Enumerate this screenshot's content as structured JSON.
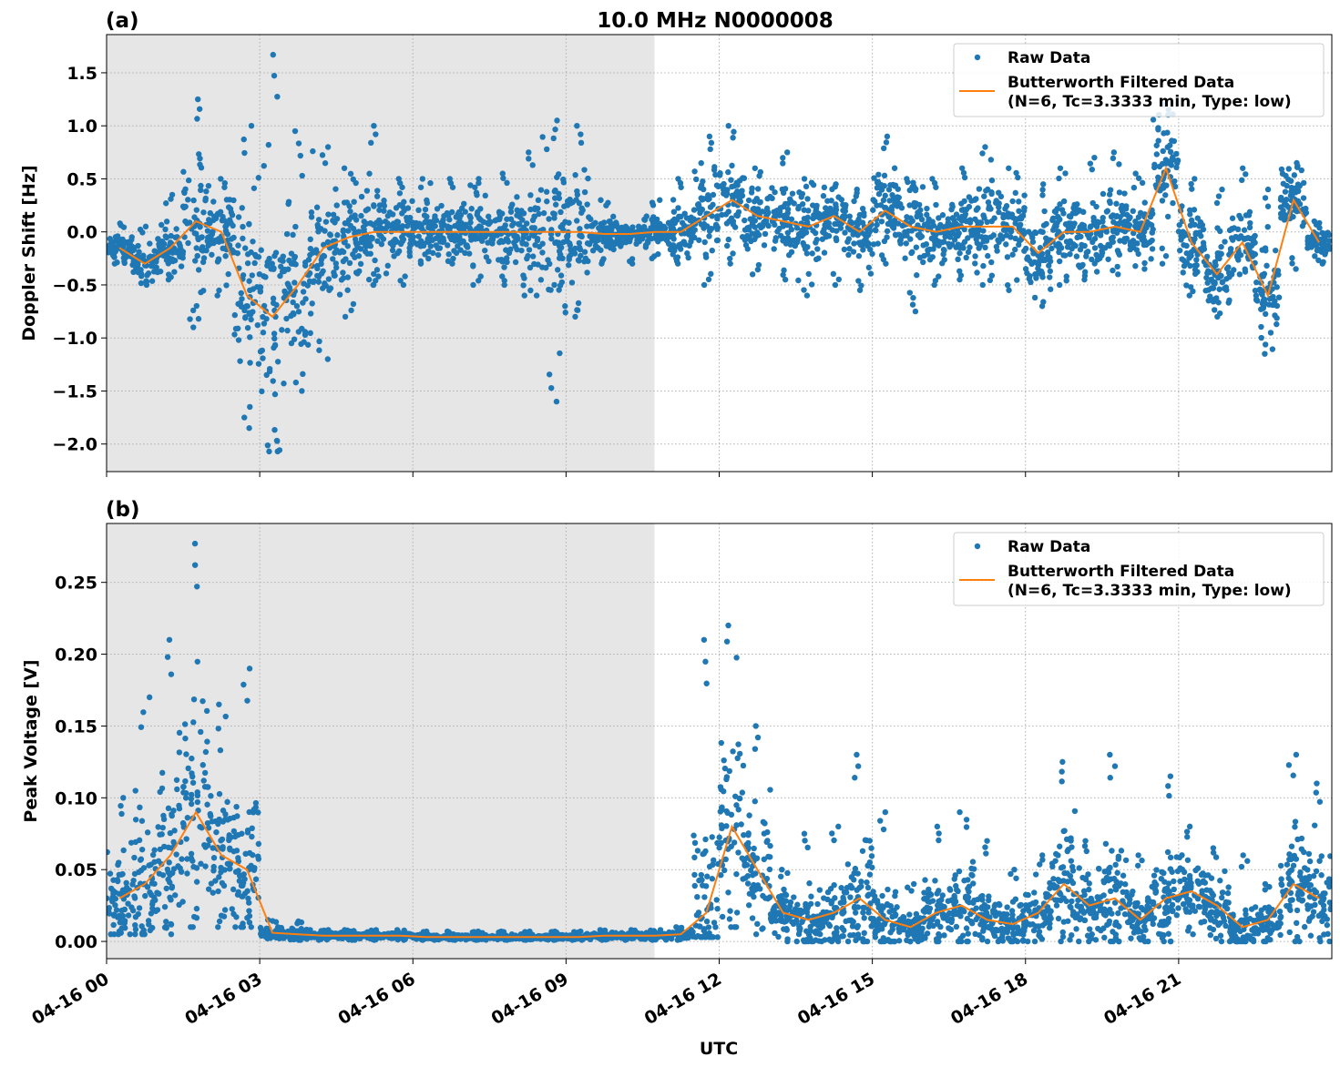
{
  "chart_data": [
    {
      "type": "scatter",
      "panel_label": "(a)",
      "title": "10.0 MHz N0000008",
      "xlabel": "",
      "ylabel": "Doppler Shift [Hz]",
      "xlim": [
        "04-16 00:00",
        "04-17 00:00"
      ],
      "ylim": [
        -2.26,
        1.86
      ],
      "y_ticks": [
        -2.0,
        -1.5,
        -1.0,
        -0.5,
        0.0,
        0.5,
        1.0,
        1.5
      ],
      "y_tick_labels": [
        "−2.0",
        "−1.5",
        "−1.0",
        "−0.5",
        "0.0",
        "0.5",
        "1.0",
        "1.5"
      ],
      "grid": true,
      "shaded_span": [
        "04-16 00:00",
        "04-16 10:44"
      ],
      "legend_position": "top-right",
      "bin_start_hours": [
        0,
        0.5,
        1,
        1.5,
        2,
        2.5,
        3,
        3.5,
        4,
        4.5,
        5,
        5.5,
        6,
        6.5,
        7,
        7.5,
        8,
        8.5,
        9,
        9.5,
        10,
        10.5,
        11,
        11.5,
        12,
        12.5,
        13,
        13.5,
        14,
        14.5,
        15,
        15.5,
        16,
        16.5,
        17,
        17.5,
        18,
        18.5,
        19,
        19.5,
        20,
        20.5,
        21,
        21.5,
        22,
        22.5,
        23,
        23.5
      ],
      "series": [
        {
          "name": "Raw Data",
          "kind": "points",
          "min": [
            -0.3,
            -0.5,
            -0.45,
            -0.9,
            -0.6,
            -1.85,
            -2.07,
            -1.5,
            -1.2,
            -0.8,
            -0.5,
            -0.5,
            -0.3,
            -0.3,
            -0.5,
            -0.5,
            -0.6,
            -1.6,
            -0.8,
            -0.3,
            -0.3,
            -0.25,
            -0.3,
            -0.5,
            -0.3,
            -0.4,
            -0.45,
            -0.6,
            -0.5,
            -0.55,
            -0.3,
            -0.75,
            -0.5,
            -0.45,
            -0.5,
            -0.55,
            -0.7,
            -0.5,
            -0.45,
            -0.4,
            -0.35,
            -0.3,
            -0.6,
            -0.8,
            -0.4,
            -1.15,
            -0.35,
            -0.3
          ],
          "max": [
            0.08,
            0.05,
            0.35,
            1.25,
            0.5,
            1.0,
            1.67,
            0.95,
            0.8,
            0.6,
            1.0,
            0.5,
            0.5,
            0.5,
            0.5,
            0.55,
            0.75,
            1.05,
            1.0,
            0.3,
            0.05,
            0.3,
            0.5,
            0.9,
            1.0,
            0.6,
            0.75,
            0.5,
            0.45,
            0.4,
            0.9,
            0.5,
            0.5,
            0.6,
            0.8,
            0.6,
            0.45,
            0.6,
            0.7,
            0.75,
            0.55,
            1.2,
            0.5,
            0.4,
            0.6,
            0.4,
            0.65,
            0.1
          ]
        },
        {
          "name": "Butterworth Filtered Data\n(N=6, Tc=3.3333 min, Type: low)",
          "kind": "line",
          "values": [
            -0.15,
            -0.3,
            -0.15,
            0.1,
            0.0,
            -0.6,
            -0.8,
            -0.5,
            -0.15,
            -0.05,
            0.0,
            0.0,
            0.0,
            0.0,
            0.0,
            0.0,
            0.0,
            0.0,
            0.0,
            -0.02,
            -0.02,
            0.0,
            0.0,
            0.15,
            0.3,
            0.15,
            0.1,
            0.05,
            0.15,
            0.0,
            0.2,
            0.05,
            0.0,
            0.05,
            0.05,
            0.05,
            -0.2,
            0.0,
            0.0,
            0.05,
            0.0,
            0.6,
            -0.1,
            -0.4,
            -0.1,
            -0.6,
            0.3,
            -0.1
          ]
        }
      ]
    },
    {
      "type": "scatter",
      "panel_label": "(b)",
      "xlabel": "UTC",
      "ylabel": "Peak Voltage [V]",
      "xlim": [
        "04-16 00:00",
        "04-17 00:00"
      ],
      "ylim": [
        -0.012,
        0.291
      ],
      "y_ticks": [
        0.0,
        0.05,
        0.1,
        0.15,
        0.2,
        0.25
      ],
      "y_tick_labels": [
        "0.00",
        "0.05",
        "0.10",
        "0.15",
        "0.20",
        "0.25"
      ],
      "x_ticks_hours": [
        0,
        3,
        6,
        9,
        12,
        15,
        18,
        21
      ],
      "x_tick_labels": [
        "04-16 00",
        "04-16 03",
        "04-16 06",
        "04-16 09",
        "04-16 12",
        "04-16 15",
        "04-16 18",
        "04-16 21"
      ],
      "grid": true,
      "shaded_span": [
        "04-16 00:00",
        "04-16 10:44"
      ],
      "legend_position": "top-right",
      "bin_start_hours": [
        0,
        0.5,
        1,
        1.5,
        2,
        2.5,
        3,
        3.5,
        4,
        4.5,
        5,
        5.5,
        6,
        6.5,
        7,
        7.5,
        8,
        8.5,
        9,
        9.5,
        10,
        10.5,
        11,
        11.5,
        12,
        12.5,
        13,
        13.5,
        14,
        14.5,
        15,
        15.5,
        16,
        16.5,
        17,
        17.5,
        18,
        18.5,
        19,
        19.5,
        20,
        20.5,
        21,
        21.5,
        22,
        22.5,
        23,
        23.5
      ],
      "series": [
        {
          "name": "Raw Data",
          "kind": "points",
          "min": [
            0.005,
            0.005,
            0.005,
            0.01,
            0.01,
            0.01,
            0.002,
            0.001,
            0.001,
            0.001,
            0.001,
            0.001,
            0.001,
            0.001,
            0.001,
            0.001,
            0.001,
            0.001,
            0.001,
            0.001,
            0.001,
            0.001,
            0.001,
            0.003,
            0.01,
            0.005,
            0.0,
            0.0,
            0.0,
            0.0,
            0.0,
            0.0,
            0.0,
            0.0,
            0.0,
            0.0,
            0.0,
            0.0,
            0.0,
            0.0,
            0.0,
            0.0,
            0.005,
            0.0,
            0.0,
            0.0,
            0.0,
            0.0
          ],
          "max": [
            0.1,
            0.17,
            0.21,
            0.277,
            0.165,
            0.19,
            0.015,
            0.014,
            0.008,
            0.008,
            0.008,
            0.008,
            0.007,
            0.007,
            0.007,
            0.007,
            0.007,
            0.007,
            0.007,
            0.008,
            0.008,
            0.008,
            0.01,
            0.21,
            0.22,
            0.15,
            0.05,
            0.075,
            0.08,
            0.13,
            0.09,
            0.04,
            0.08,
            0.09,
            0.07,
            0.05,
            0.06,
            0.125,
            0.07,
            0.13,
            0.06,
            0.115,
            0.08,
            0.065,
            0.06,
            0.04,
            0.13,
            0.11
          ]
        },
        {
          "name": "Butterworth Filtered Data\n(N=6, Tc=3.3333 min, Type: low)",
          "kind": "line",
          "values": [
            0.03,
            0.04,
            0.06,
            0.09,
            0.06,
            0.05,
            0.006,
            0.005,
            0.004,
            0.004,
            0.004,
            0.004,
            0.003,
            0.003,
            0.003,
            0.003,
            0.003,
            0.003,
            0.003,
            0.004,
            0.004,
            0.004,
            0.005,
            0.02,
            0.08,
            0.05,
            0.02,
            0.015,
            0.02,
            0.03,
            0.015,
            0.01,
            0.02,
            0.025,
            0.015,
            0.012,
            0.02,
            0.04,
            0.025,
            0.03,
            0.015,
            0.03,
            0.035,
            0.025,
            0.01,
            0.015,
            0.04,
            0.03
          ]
        }
      ]
    }
  ],
  "legend": {
    "raw_label": "Raw Data",
    "filtered_label_line1": "Butterworth Filtered Data",
    "filtered_label_line2": "(N=6, Tc=3.3333 min, Type: low)"
  },
  "colors": {
    "raw": "#1f77b4",
    "filtered": "#ff7f0e",
    "shade": "#e6e6e6",
    "grid": "#b0b0b0"
  }
}
